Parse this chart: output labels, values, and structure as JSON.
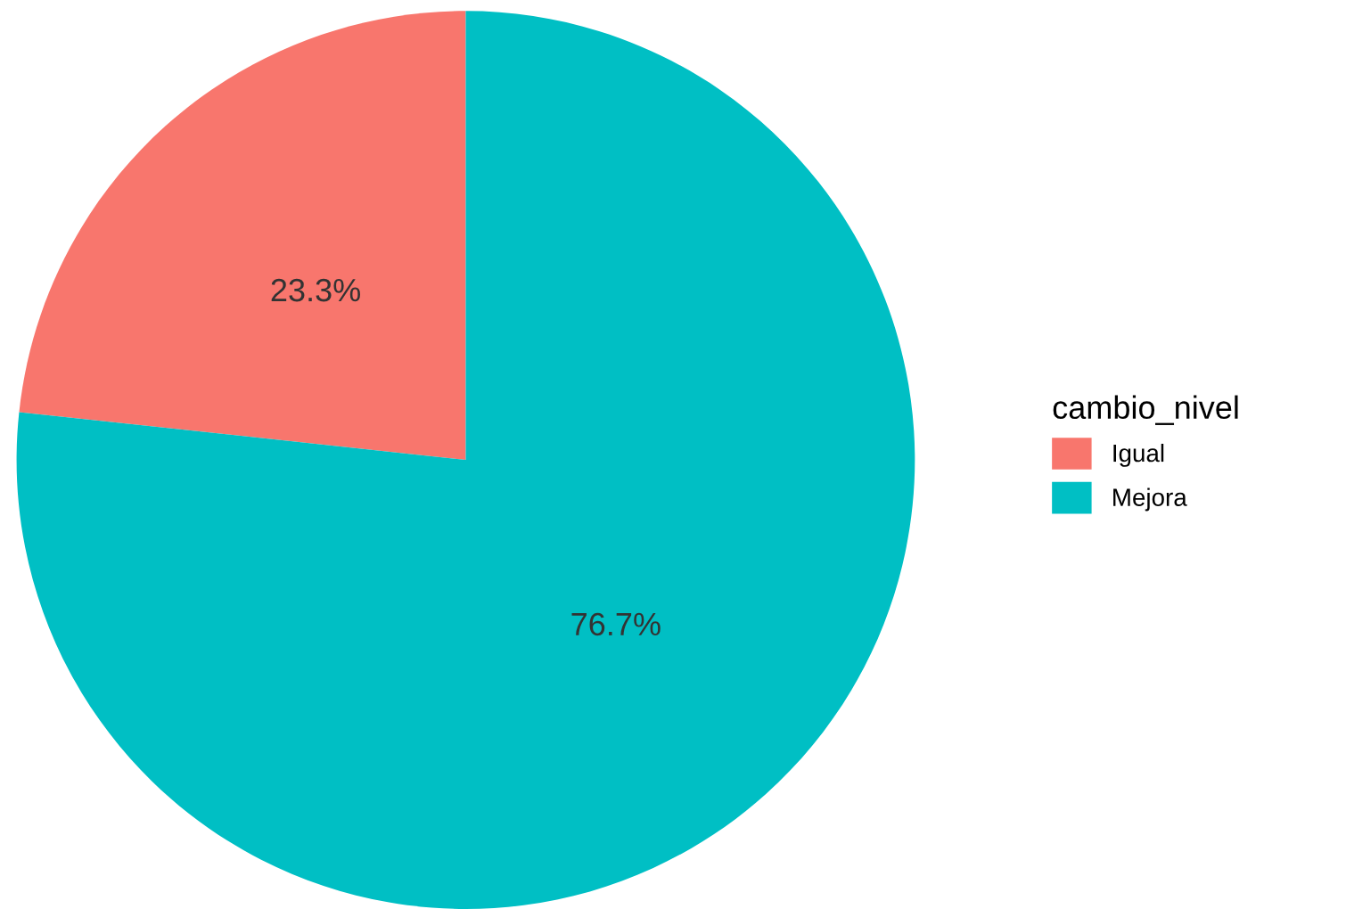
{
  "chart_data": {
    "type": "pie",
    "legend_title": "cambio_nivel",
    "legend": "right",
    "categories": [
      "Igual",
      "Mejora"
    ],
    "values": [
      23.3,
      76.7
    ],
    "colors": [
      "#f8766d",
      "#00bfc4"
    ],
    "value_labels": [
      "23.3%",
      "76.7%"
    ]
  }
}
